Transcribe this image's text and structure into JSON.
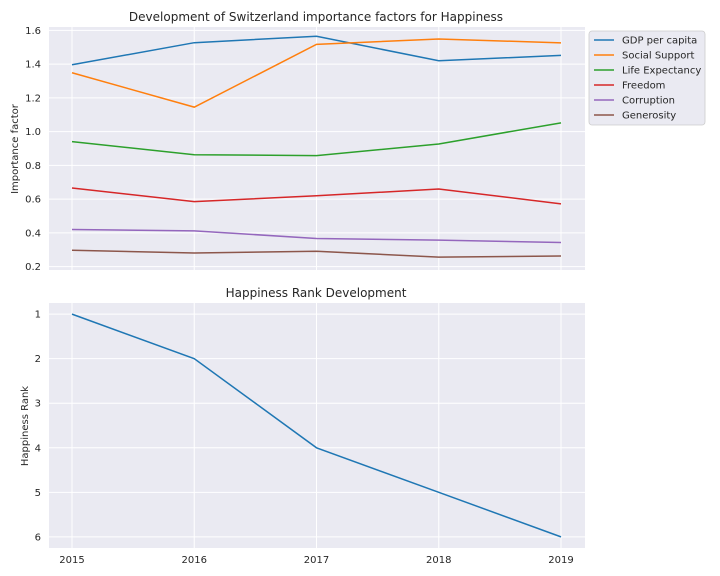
{
  "chart_data": [
    {
      "type": "line",
      "title": "Development of Switzerland importance factors for Happiness",
      "xlabel": "",
      "ylabel": "Importance factor",
      "x": [
        2015,
        2016,
        2017,
        2018,
        2019
      ],
      "ylim": [
        0.18,
        1.62
      ],
      "yticks": [
        0.2,
        0.4,
        0.6,
        0.8,
        1.0,
        1.2,
        1.4,
        1.6
      ],
      "ytick_labels": [
        "0.2",
        "0.4",
        "0.6",
        "0.8",
        "1.0",
        "1.2",
        "1.4",
        "1.6"
      ],
      "grid": true,
      "legend_position": "outside-top-right",
      "series": [
        {
          "name": "GDP per capita",
          "color": "#1f77b4",
          "values": [
            1.396,
            1.527,
            1.565,
            1.42,
            1.452
          ]
        },
        {
          "name": "Social Support",
          "color": "#ff7f0e",
          "values": [
            1.349,
            1.145,
            1.517,
            1.549,
            1.526
          ]
        },
        {
          "name": "Life Expectancy",
          "color": "#2ca02c",
          "values": [
            0.941,
            0.863,
            0.858,
            0.927,
            1.052
          ]
        },
        {
          "name": "Freedom",
          "color": "#d62728",
          "values": [
            0.666,
            0.585,
            0.62,
            0.66,
            0.572
          ]
        },
        {
          "name": "Corruption",
          "color": "#9467bd",
          "values": [
            0.42,
            0.412,
            0.367,
            0.357,
            0.343
          ]
        },
        {
          "name": "Generosity",
          "color": "#8c564b",
          "values": [
            0.297,
            0.281,
            0.291,
            0.256,
            0.263
          ]
        }
      ]
    },
    {
      "type": "line",
      "title": "Happiness Rank Development",
      "xlabel": "",
      "ylabel": "Happiness Rank",
      "x": [
        2015,
        2016,
        2017,
        2018,
        2019
      ],
      "xtick_labels": [
        "2015",
        "2016",
        "2017",
        "2018",
        "2019"
      ],
      "ylim": [
        0.75,
        6.25
      ],
      "y_inverted": true,
      "yticks": [
        1,
        2,
        3,
        4,
        5,
        6
      ],
      "ytick_labels": [
        "1",
        "2",
        "3",
        "4",
        "5",
        "6"
      ],
      "grid": true,
      "series": [
        {
          "color": "#1f77b4",
          "values": [
            1,
            2,
            4,
            5,
            6
          ]
        }
      ]
    }
  ]
}
